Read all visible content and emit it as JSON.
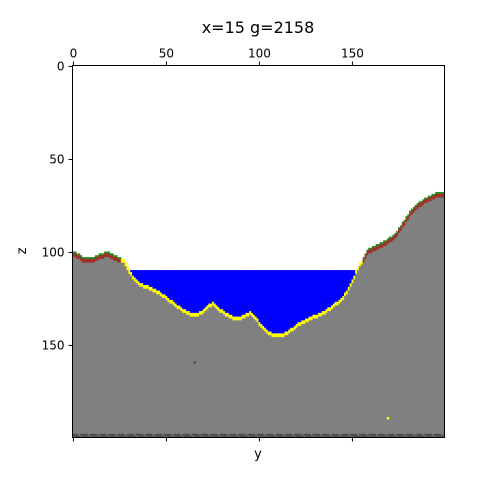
{
  "chart_data": {
    "type": "heatmap",
    "title": "x=15 g=2158",
    "xlabel": "y",
    "ylabel": "z",
    "x_range": [
      0,
      199
    ],
    "z_range": [
      0,
      199
    ],
    "z_inverted": true,
    "x_ticks": [
      0,
      50,
      100,
      150
    ],
    "x_tick_labels": [
      "0",
      "50",
      "100",
      "150"
    ],
    "x_tick_position": "top",
    "z_ticks": [
      0,
      50,
      100,
      150
    ],
    "z_tick_labels": [
      "0",
      "50",
      "100",
      "150"
    ],
    "water_level_z": 110,
    "materials": {
      "air": "#ffffff",
      "stone": "#808080",
      "water": "#0000ff",
      "sand": "#ffff00",
      "dirt": "#a0302a",
      "grass": "#2e8b20",
      "bedrock": "#505050"
    },
    "terrain_profile": [
      {
        "y": 0,
        "z": 100
      },
      {
        "y": 3,
        "z": 101
      },
      {
        "y": 5,
        "z": 103
      },
      {
        "y": 10,
        "z": 103
      },
      {
        "y": 14,
        "z": 101
      },
      {
        "y": 19,
        "z": 100
      },
      {
        "y": 23,
        "z": 102
      },
      {
        "y": 27,
        "z": 104
      },
      {
        "y": 29,
        "z": 108
      },
      {
        "y": 31,
        "z": 111
      },
      {
        "y": 33,
        "z": 114
      },
      {
        "y": 36,
        "z": 117
      },
      {
        "y": 42,
        "z": 119
      },
      {
        "y": 46,
        "z": 121
      },
      {
        "y": 50,
        "z": 124
      },
      {
        "y": 54,
        "z": 127
      },
      {
        "y": 58,
        "z": 130
      },
      {
        "y": 61,
        "z": 132
      },
      {
        "y": 64,
        "z": 133
      },
      {
        "y": 67,
        "z": 133
      },
      {
        "y": 70,
        "z": 131
      },
      {
        "y": 73,
        "z": 128
      },
      {
        "y": 75,
        "z": 127
      },
      {
        "y": 78,
        "z": 130
      },
      {
        "y": 81,
        "z": 132
      },
      {
        "y": 84,
        "z": 134
      },
      {
        "y": 88,
        "z": 135
      },
      {
        "y": 92,
        "z": 134
      },
      {
        "y": 95,
        "z": 132
      },
      {
        "y": 98,
        "z": 135
      },
      {
        "y": 101,
        "z": 139
      },
      {
        "y": 104,
        "z": 142
      },
      {
        "y": 108,
        "z": 144
      },
      {
        "y": 112,
        "z": 144
      },
      {
        "y": 116,
        "z": 142
      },
      {
        "y": 120,
        "z": 139
      },
      {
        "y": 125,
        "z": 136
      },
      {
        "y": 130,
        "z": 134
      },
      {
        "y": 135,
        "z": 132
      },
      {
        "y": 140,
        "z": 128
      },
      {
        "y": 144,
        "z": 125
      },
      {
        "y": 147,
        "z": 121
      },
      {
        "y": 150,
        "z": 115
      },
      {
        "y": 153,
        "z": 108
      },
      {
        "y": 156,
        "z": 103
      },
      {
        "y": 158,
        "z": 99
      },
      {
        "y": 161,
        "z": 97
      },
      {
        "y": 165,
        "z": 95
      },
      {
        "y": 169,
        "z": 93
      },
      {
        "y": 173,
        "z": 90
      },
      {
        "y": 176,
        "z": 86
      },
      {
        "y": 179,
        "z": 81
      },
      {
        "y": 182,
        "z": 77
      },
      {
        "y": 185,
        "z": 74
      },
      {
        "y": 188,
        "z": 72
      },
      {
        "y": 191,
        "z": 70
      },
      {
        "y": 195,
        "z": 68
      },
      {
        "y": 199,
        "z": 68
      }
    ],
    "specks": [
      {
        "y": 65,
        "z": 159,
        "material": "bedrock"
      },
      {
        "y": 169,
        "z": 189,
        "material": "sand"
      }
    ],
    "bedrock_rows": [
      198,
      199
    ]
  }
}
